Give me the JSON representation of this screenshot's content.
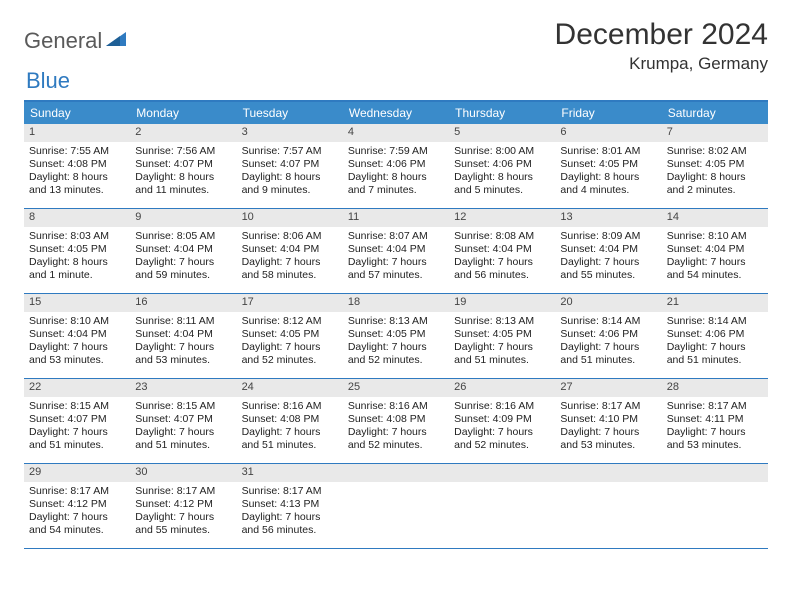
{
  "brand": {
    "general": "General",
    "blue": "Blue"
  },
  "title": "December 2024",
  "location": "Krumpa, Germany",
  "colors": {
    "header_bg": "#3a8bca",
    "border": "#2f7ac0",
    "daynum_bg": "#e9e9e9"
  },
  "dow": [
    "Sunday",
    "Monday",
    "Tuesday",
    "Wednesday",
    "Thursday",
    "Friday",
    "Saturday"
  ],
  "weeks": [
    [
      {
        "n": "1",
        "sr": "Sunrise: 7:55 AM",
        "ss": "Sunset: 4:08 PM",
        "d1": "Daylight: 8 hours",
        "d2": "and 13 minutes."
      },
      {
        "n": "2",
        "sr": "Sunrise: 7:56 AM",
        "ss": "Sunset: 4:07 PM",
        "d1": "Daylight: 8 hours",
        "d2": "and 11 minutes."
      },
      {
        "n": "3",
        "sr": "Sunrise: 7:57 AM",
        "ss": "Sunset: 4:07 PM",
        "d1": "Daylight: 8 hours",
        "d2": "and 9 minutes."
      },
      {
        "n": "4",
        "sr": "Sunrise: 7:59 AM",
        "ss": "Sunset: 4:06 PM",
        "d1": "Daylight: 8 hours",
        "d2": "and 7 minutes."
      },
      {
        "n": "5",
        "sr": "Sunrise: 8:00 AM",
        "ss": "Sunset: 4:06 PM",
        "d1": "Daylight: 8 hours",
        "d2": "and 5 minutes."
      },
      {
        "n": "6",
        "sr": "Sunrise: 8:01 AM",
        "ss": "Sunset: 4:05 PM",
        "d1": "Daylight: 8 hours",
        "d2": "and 4 minutes."
      },
      {
        "n": "7",
        "sr": "Sunrise: 8:02 AM",
        "ss": "Sunset: 4:05 PM",
        "d1": "Daylight: 8 hours",
        "d2": "and 2 minutes."
      }
    ],
    [
      {
        "n": "8",
        "sr": "Sunrise: 8:03 AM",
        "ss": "Sunset: 4:05 PM",
        "d1": "Daylight: 8 hours",
        "d2": "and 1 minute."
      },
      {
        "n": "9",
        "sr": "Sunrise: 8:05 AM",
        "ss": "Sunset: 4:04 PM",
        "d1": "Daylight: 7 hours",
        "d2": "and 59 minutes."
      },
      {
        "n": "10",
        "sr": "Sunrise: 8:06 AM",
        "ss": "Sunset: 4:04 PM",
        "d1": "Daylight: 7 hours",
        "d2": "and 58 minutes."
      },
      {
        "n": "11",
        "sr": "Sunrise: 8:07 AM",
        "ss": "Sunset: 4:04 PM",
        "d1": "Daylight: 7 hours",
        "d2": "and 57 minutes."
      },
      {
        "n": "12",
        "sr": "Sunrise: 8:08 AM",
        "ss": "Sunset: 4:04 PM",
        "d1": "Daylight: 7 hours",
        "d2": "and 56 minutes."
      },
      {
        "n": "13",
        "sr": "Sunrise: 8:09 AM",
        "ss": "Sunset: 4:04 PM",
        "d1": "Daylight: 7 hours",
        "d2": "and 55 minutes."
      },
      {
        "n": "14",
        "sr": "Sunrise: 8:10 AM",
        "ss": "Sunset: 4:04 PM",
        "d1": "Daylight: 7 hours",
        "d2": "and 54 minutes."
      }
    ],
    [
      {
        "n": "15",
        "sr": "Sunrise: 8:10 AM",
        "ss": "Sunset: 4:04 PM",
        "d1": "Daylight: 7 hours",
        "d2": "and 53 minutes."
      },
      {
        "n": "16",
        "sr": "Sunrise: 8:11 AM",
        "ss": "Sunset: 4:04 PM",
        "d1": "Daylight: 7 hours",
        "d2": "and 53 minutes."
      },
      {
        "n": "17",
        "sr": "Sunrise: 8:12 AM",
        "ss": "Sunset: 4:05 PM",
        "d1": "Daylight: 7 hours",
        "d2": "and 52 minutes."
      },
      {
        "n": "18",
        "sr": "Sunrise: 8:13 AM",
        "ss": "Sunset: 4:05 PM",
        "d1": "Daylight: 7 hours",
        "d2": "and 52 minutes."
      },
      {
        "n": "19",
        "sr": "Sunrise: 8:13 AM",
        "ss": "Sunset: 4:05 PM",
        "d1": "Daylight: 7 hours",
        "d2": "and 51 minutes."
      },
      {
        "n": "20",
        "sr": "Sunrise: 8:14 AM",
        "ss": "Sunset: 4:06 PM",
        "d1": "Daylight: 7 hours",
        "d2": "and 51 minutes."
      },
      {
        "n": "21",
        "sr": "Sunrise: 8:14 AM",
        "ss": "Sunset: 4:06 PM",
        "d1": "Daylight: 7 hours",
        "d2": "and 51 minutes."
      }
    ],
    [
      {
        "n": "22",
        "sr": "Sunrise: 8:15 AM",
        "ss": "Sunset: 4:07 PM",
        "d1": "Daylight: 7 hours",
        "d2": "and 51 minutes."
      },
      {
        "n": "23",
        "sr": "Sunrise: 8:15 AM",
        "ss": "Sunset: 4:07 PM",
        "d1": "Daylight: 7 hours",
        "d2": "and 51 minutes."
      },
      {
        "n": "24",
        "sr": "Sunrise: 8:16 AM",
        "ss": "Sunset: 4:08 PM",
        "d1": "Daylight: 7 hours",
        "d2": "and 51 minutes."
      },
      {
        "n": "25",
        "sr": "Sunrise: 8:16 AM",
        "ss": "Sunset: 4:08 PM",
        "d1": "Daylight: 7 hours",
        "d2": "and 52 minutes."
      },
      {
        "n": "26",
        "sr": "Sunrise: 8:16 AM",
        "ss": "Sunset: 4:09 PM",
        "d1": "Daylight: 7 hours",
        "d2": "and 52 minutes."
      },
      {
        "n": "27",
        "sr": "Sunrise: 8:17 AM",
        "ss": "Sunset: 4:10 PM",
        "d1": "Daylight: 7 hours",
        "d2": "and 53 minutes."
      },
      {
        "n": "28",
        "sr": "Sunrise: 8:17 AM",
        "ss": "Sunset: 4:11 PM",
        "d1": "Daylight: 7 hours",
        "d2": "and 53 minutes."
      }
    ],
    [
      {
        "n": "29",
        "sr": "Sunrise: 8:17 AM",
        "ss": "Sunset: 4:12 PM",
        "d1": "Daylight: 7 hours",
        "d2": "and 54 minutes."
      },
      {
        "n": "30",
        "sr": "Sunrise: 8:17 AM",
        "ss": "Sunset: 4:12 PM",
        "d1": "Daylight: 7 hours",
        "d2": "and 55 minutes."
      },
      {
        "n": "31",
        "sr": "Sunrise: 8:17 AM",
        "ss": "Sunset: 4:13 PM",
        "d1": "Daylight: 7 hours",
        "d2": "and 56 minutes."
      },
      {
        "empty": true
      },
      {
        "empty": true
      },
      {
        "empty": true
      },
      {
        "empty": true
      }
    ]
  ]
}
